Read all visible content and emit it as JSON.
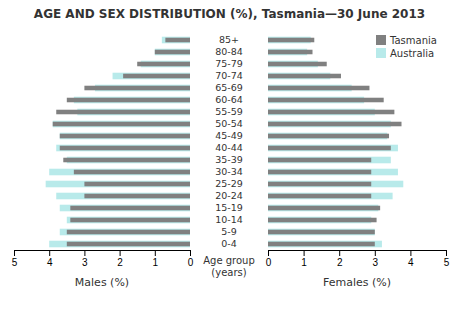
{
  "chart_data": [
    {
      "type": "bar",
      "orientation": "horizontal",
      "title": "AGE AND SEX DISTRIBUTION (%), Tasmania—30 June 2013",
      "categories": [
        "0-4",
        "5-9",
        "10-14",
        "15-19",
        "20-24",
        "25-29",
        "30-34",
        "35-39",
        "40-44",
        "45-49",
        "50-54",
        "55-59",
        "60-64",
        "65-69",
        "70-74",
        "75-79",
        "80-84",
        "85+"
      ],
      "xlabel": "Males (%)",
      "ylabel": "Age group\n(years)",
      "xlim": [
        5.0,
        0
      ],
      "xticks": [
        5,
        4,
        3,
        2,
        1,
        0
      ],
      "series": [
        {
          "name": "Tasmania",
          "color": "#808080",
          "values": [
            3.5,
            3.5,
            3.4,
            3.4,
            3.0,
            3.0,
            3.3,
            3.6,
            3.7,
            3.7,
            3.9,
            3.8,
            3.5,
            3.0,
            1.9,
            1.5,
            1.0,
            0.7
          ]
        },
        {
          "name": "Australia",
          "color": "#b8eaea",
          "values": [
            4.0,
            3.7,
            3.5,
            3.7,
            3.8,
            4.1,
            4.0,
            3.5,
            3.8,
            3.7,
            3.9,
            3.2,
            3.3,
            2.7,
            2.2,
            1.4,
            1.0,
            0.8
          ]
        }
      ]
    },
    {
      "type": "bar",
      "orientation": "horizontal",
      "categories": [
        "0-4",
        "5-9",
        "10-14",
        "15-19",
        "20-24",
        "25-29",
        "30-34",
        "35-39",
        "40-44",
        "45-49",
        "50-54",
        "55-59",
        "60-64",
        "65-69",
        "70-74",
        "75-79",
        "80-84",
        "85+"
      ],
      "xlabel": "Females (%)",
      "xlim": [
        0,
        5.0
      ],
      "xticks": [
        0,
        1,
        2,
        3,
        4,
        5
      ],
      "legend": "upper right",
      "series": [
        {
          "name": "Tasmania",
          "color": "#808080",
          "values": [
            3.0,
            3.0,
            3.05,
            3.15,
            2.9,
            2.9,
            2.9,
            2.9,
            3.45,
            3.4,
            3.75,
            3.55,
            3.25,
            2.85,
            2.05,
            1.65,
            1.25,
            1.3
          ]
        },
        {
          "name": "Australia",
          "color": "#b8eaea",
          "values": [
            3.2,
            3.0,
            2.9,
            3.1,
            3.5,
            3.8,
            3.65,
            3.45,
            3.65,
            3.35,
            3.45,
            3.0,
            2.7,
            2.35,
            1.75,
            1.4,
            1.1,
            1.2
          ]
        }
      ]
    }
  ]
}
